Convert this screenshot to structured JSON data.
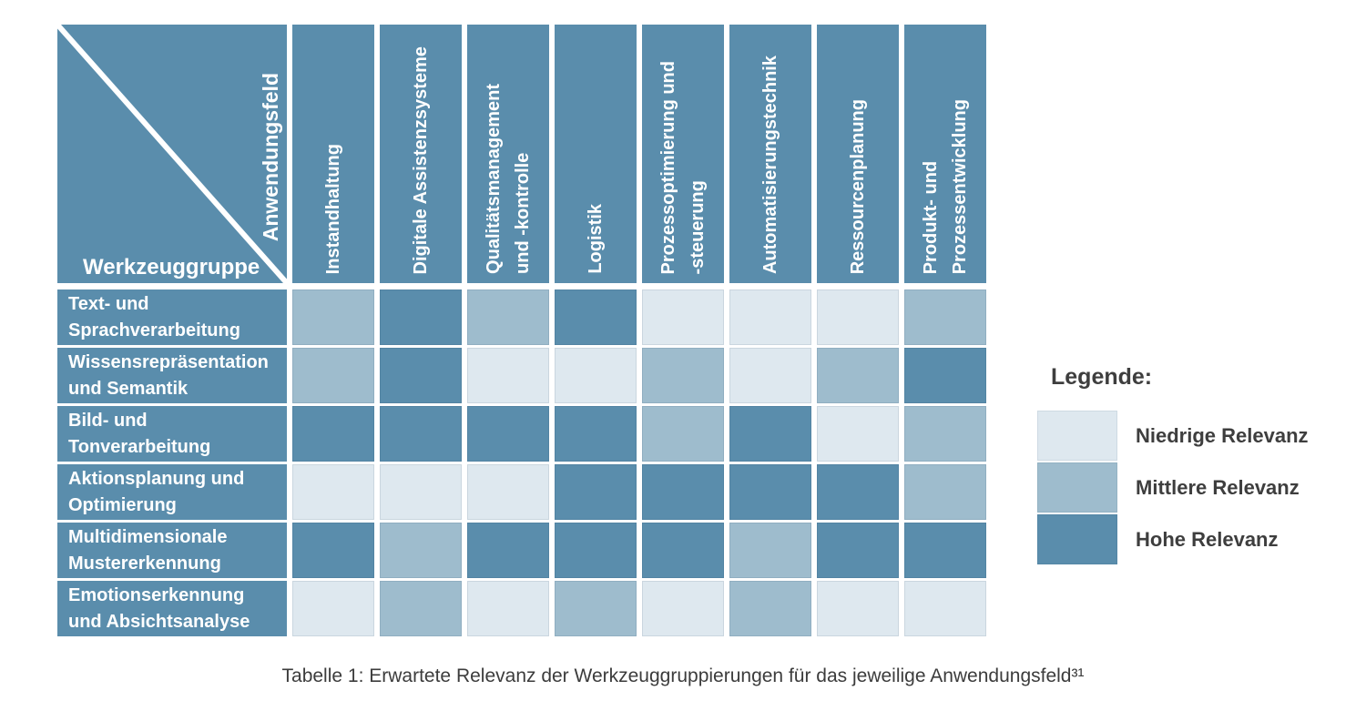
{
  "colors": {
    "low": "#dee8ef",
    "medium": "#9ebccd",
    "high": "#5a8dac",
    "header": "#5a8dac",
    "legend_text": "#3e3e3e"
  },
  "corner": {
    "column_axis_label": "Anwendungsfeld",
    "row_axis_label": "Werkzeuggruppe"
  },
  "chart_data": {
    "type": "heatmap",
    "columns": [
      "Instandhaltung",
      "Digitale Assistenzsysteme",
      "Qualitätsmanagement\nund -kontrolle",
      "Logistik",
      "Prozessoptimierung und\n-steuerung",
      "Automatisierungstechnik",
      "Ressourcenplanung",
      "Produkt- und\nProzessentwicklung"
    ],
    "rows": [
      {
        "label": "Text- und\nSprachverarbeitung",
        "values": [
          "medium",
          "high",
          "medium",
          "high",
          "low",
          "low",
          "low",
          "medium"
        ]
      },
      {
        "label": "Wissensrepräsentation\nund Semantik",
        "values": [
          "medium",
          "high",
          "low",
          "low",
          "medium",
          "low",
          "medium",
          "high"
        ]
      },
      {
        "label": "Bild- und\nTonverarbeitung",
        "values": [
          "high",
          "high",
          "high",
          "high",
          "medium",
          "high",
          "low",
          "medium"
        ]
      },
      {
        "label": "Aktionsplanung und\nOptimierung",
        "values": [
          "low",
          "low",
          "low",
          "high",
          "high",
          "high",
          "high",
          "medium"
        ]
      },
      {
        "label": "Multidimensionale\nMustererkennung",
        "values": [
          "high",
          "medium",
          "high",
          "high",
          "high",
          "medium",
          "high",
          "high"
        ]
      },
      {
        "label": "Emotionserkennung\nund Absichtsanalyse",
        "values": [
          "low",
          "medium",
          "low",
          "medium",
          "low",
          "medium",
          "low",
          "low"
        ]
      }
    ],
    "value_scale": [
      "low",
      "medium",
      "high"
    ]
  },
  "legend": {
    "title": "Legende:",
    "items": [
      {
        "level": "low",
        "label": "Niedrige Relevanz"
      },
      {
        "level": "medium",
        "label": "Mittlere Relevanz"
      },
      {
        "level": "high",
        "label": "Hohe Relevanz"
      }
    ]
  },
  "caption": "Tabelle 1: Erwartete Relevanz der Werkzeuggruppierungen für das jeweilige Anwendungsfeld³¹"
}
